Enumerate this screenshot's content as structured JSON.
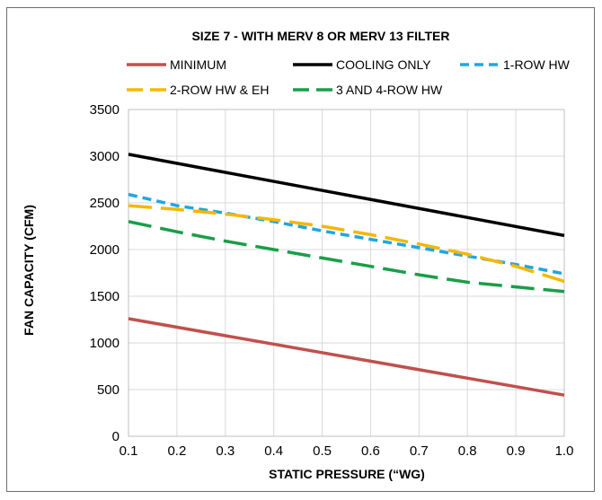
{
  "chart_data": {
    "type": "line",
    "title": "SIZE 7 - WITH MERV 8 OR MERV 13 FILTER",
    "xlabel": "STATIC PRESSURE (“WG)",
    "ylabel": "FAN CAPACITY (CFM)",
    "xlim": [
      0.1,
      1.0
    ],
    "ylim": [
      0,
      3500
    ],
    "x_ticks": [
      "0.1",
      "0.2",
      "0.3",
      "0.4",
      "0.5",
      "0.6",
      "0.7",
      "0.8",
      "0.9",
      "1.0"
    ],
    "y_ticks": [
      "0",
      "500",
      "1000",
      "1500",
      "2000",
      "2500",
      "3000",
      "3500"
    ],
    "grid": true,
    "legend_position": "top",
    "series": [
      {
        "name": "MINIMUM",
        "color": "#c0504d",
        "dash": "solid",
        "x": [
          0.1,
          1.0
        ],
        "y": [
          1260,
          440
        ]
      },
      {
        "name": "COOLING ONLY",
        "color": "#000000",
        "dash": "solid",
        "x": [
          0.1,
          1.0
        ],
        "y": [
          3020,
          2150
        ]
      },
      {
        "name": "1-ROW HW",
        "color": "#1ea7e1",
        "dash": "short",
        "x": [
          0.1,
          0.2,
          0.3,
          0.4,
          0.5,
          0.6,
          0.7,
          0.8,
          0.9,
          1.0
        ],
        "y": [
          2590,
          2470,
          2390,
          2300,
          2200,
          2110,
          2020,
          1930,
          1840,
          1740
        ]
      },
      {
        "name": "2-ROW HW & EH",
        "color": "#f5b700",
        "dash": "long",
        "x": [
          0.1,
          0.2,
          0.3,
          0.4,
          0.5,
          0.6,
          0.7,
          0.8,
          0.9,
          1.0
        ],
        "y": [
          2470,
          2430,
          2380,
          2320,
          2250,
          2160,
          2060,
          1950,
          1820,
          1660
        ]
      },
      {
        "name": "3 AND 4-ROW HW",
        "color": "#1a9e48",
        "dash": "long",
        "x": [
          0.1,
          0.2,
          0.3,
          0.4,
          0.5,
          0.6,
          0.7,
          0.8,
          0.9,
          1.0
        ],
        "y": [
          2300,
          2190,
          2090,
          2000,
          1910,
          1820,
          1730,
          1650,
          1600,
          1550
        ]
      }
    ]
  }
}
